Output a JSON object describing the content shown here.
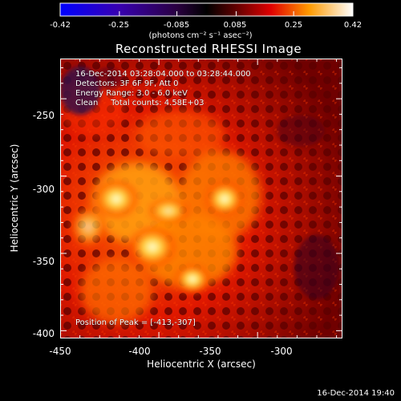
{
  "colorbar": {
    "ticks": [
      "-0.42",
      "-0.25",
      "-0.085",
      "0.085",
      "0.25",
      "0.42"
    ],
    "tick_values": [
      -0.42,
      -0.25,
      -0.085,
      0.085,
      0.25,
      0.42
    ],
    "range": [
      -0.42,
      0.42
    ],
    "units": "(photons cm⁻² s⁻¹ asec⁻²)"
  },
  "title": "Reconstructed RHESSI Image",
  "info": {
    "line1": "16-Dec-2014 03:28:04.000 to 03:28:44.000",
    "line2": "Detectors: 3F 6F 9F, Att 0",
    "line3": "Energy Range: 3.0 - 6.0 keV",
    "line4": "Clean     Total counts: 4.58E+03"
  },
  "peak": "Position of Peak = [-413,-307]",
  "axes": {
    "xlabel": "Heliocentric X (arcsec)",
    "ylabel": "Heliocentric Y (arcsec)",
    "xticks": [
      "-450",
      "-400",
      "-350",
      "-300"
    ],
    "xtick_values": [
      -450,
      -400,
      -350,
      -300
    ],
    "yticks": [
      "-250",
      "-300",
      "-350",
      "-400"
    ],
    "ytick_values": [
      -250,
      -300,
      -350,
      -400
    ],
    "xlim": [
      -450,
      -307
    ],
    "ylim": [
      -405,
      -224
    ]
  },
  "timestamp": "16-Dec-2014 19:40",
  "colors": {
    "map_low": "#0000ff",
    "map_mid": "#000000",
    "map_high": "#ffffff"
  }
}
